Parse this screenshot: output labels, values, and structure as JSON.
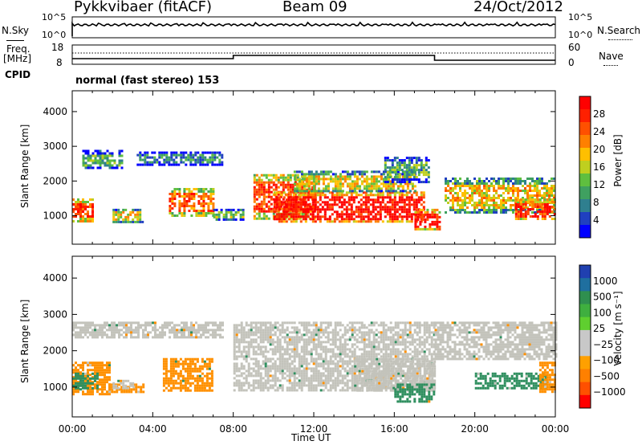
{
  "header": {
    "station": "Pykkvibaer (fitACF)",
    "beam": "Beam 09",
    "date": "24/Oct/2012"
  },
  "noise_panel": {
    "left_label": "N.Sky",
    "right_label": "N.Search",
    "ticks_left": [
      "10^5",
      "10^0"
    ],
    "ticks_right": [
      "10^5",
      "10^0"
    ]
  },
  "freq_panel": {
    "left_label_line1": "Freq.",
    "left_label_line2": "[MHz]",
    "right_label": "Nave",
    "ticks_left": [
      "18",
      "8"
    ],
    "ticks_right": [
      "60",
      "0"
    ],
    "cpid_label": "CPID",
    "cpid_value": "normal (fast stereo) 153"
  },
  "chart_data": [
    {
      "type": "heatmap",
      "name": "power",
      "ylabel": "Slant Range [km]",
      "ylim": [
        180,
        4600
      ],
      "yticks": [
        1000,
        2000,
        3000,
        4000
      ],
      "xlim": [
        0,
        24
      ],
      "colorbar": {
        "label": "Power [dB]",
        "ticks": [
          4,
          8,
          12,
          16,
          20,
          24,
          28
        ],
        "colors": [
          "#0000ff",
          "#2040c0",
          "#2f7f8f",
          "#3fa060",
          "#5fbf3f",
          "#bfcf1f",
          "#ffbf00",
          "#ff8000",
          "#ff5000",
          "#ff2000",
          "#ff0000"
        ]
      },
      "bands": [
        {
          "t0": 0.0,
          "t1": 1.0,
          "r0": 850,
          "r1": 1500,
          "level": 0.85
        },
        {
          "t0": 0.5,
          "t1": 2.5,
          "r0": 2400,
          "r1": 2900,
          "level": 0.35
        },
        {
          "t0": 2.0,
          "t1": 3.5,
          "r0": 800,
          "r1": 1200,
          "level": 0.55
        },
        {
          "t0": 3.2,
          "t1": 7.5,
          "r0": 2500,
          "r1": 2850,
          "level": 0.25
        },
        {
          "t0": 4.8,
          "t1": 7.0,
          "r0": 1000,
          "r1": 1800,
          "level": 0.75
        },
        {
          "t0": 7.0,
          "t1": 8.5,
          "r0": 900,
          "r1": 1200,
          "level": 0.45
        },
        {
          "t0": 9.0,
          "t1": 12.0,
          "r0": 900,
          "r1": 2200,
          "level": 0.8
        },
        {
          "t0": 10.0,
          "t1": 17.5,
          "r0": 800,
          "r1": 1700,
          "level": 0.95
        },
        {
          "t0": 11.0,
          "t1": 17.0,
          "r0": 1700,
          "r1": 2300,
          "level": 0.55
        },
        {
          "t0": 15.5,
          "t1": 17.7,
          "r0": 2000,
          "r1": 2700,
          "level": 0.35
        },
        {
          "t0": 17.0,
          "t1": 18.3,
          "r0": 600,
          "r1": 1200,
          "level": 0.9
        },
        {
          "t0": 18.5,
          "t1": 24.0,
          "r0": 1100,
          "r1": 2100,
          "level": 0.6
        },
        {
          "t0": 22.0,
          "t1": 24.0,
          "r0": 900,
          "r1": 1500,
          "level": 0.85
        }
      ]
    },
    {
      "type": "heatmap",
      "name": "velocity",
      "ylabel": "Slant Range [km]",
      "ylim": [
        180,
        4600
      ],
      "yticks": [
        1000,
        2000,
        3000,
        4000
      ],
      "xlim": [
        0,
        24
      ],
      "xticks": [
        "00:00",
        "04:00",
        "08:00",
        "12:00",
        "16:00",
        "20:00",
        "00:00"
      ],
      "xlabel": "Time UT",
      "colorbar": {
        "label": "Velocity [m s⁻¹]",
        "ticks": [
          "1000",
          "500",
          "100",
          "25",
          "−25",
          "−100",
          "−500",
          "−1000"
        ],
        "colors": [
          "#2040b0",
          "#1f6f9f",
          "#2f8f4f",
          "#3faf3f",
          "#5fcf2f",
          "#c8c8c8",
          "#c8c8c8",
          "#ffa000",
          "#ff8000",
          "#ff5000",
          "#ff0000"
        ]
      },
      "bands": [
        {
          "t0": 0.0,
          "t1": 7.5,
          "r0": 2400,
          "r1": 2800,
          "level": "gray"
        },
        {
          "t0": 0.0,
          "t1": 1.8,
          "r0": 800,
          "r1": 1700,
          "level": "orange"
        },
        {
          "t0": 0.0,
          "t1": 1.2,
          "r0": 1000,
          "r1": 1400,
          "level": "bluegreen"
        },
        {
          "t0": 1.8,
          "t1": 3.5,
          "r0": 900,
          "r1": 1100,
          "level": "orange"
        },
        {
          "t0": 2.0,
          "t1": 3.0,
          "r0": 1000,
          "r1": 1200,
          "level": "gray"
        },
        {
          "t0": 4.5,
          "t1": 7.0,
          "r0": 900,
          "r1": 1800,
          "level": "orange"
        },
        {
          "t0": 8.0,
          "t1": 18.0,
          "r0": 900,
          "r1": 2800,
          "level": "gray"
        },
        {
          "t0": 14.0,
          "t1": 18.0,
          "r0": 900,
          "r1": 1800,
          "level": "gray"
        },
        {
          "t0": 16.0,
          "t1": 18.0,
          "r0": 600,
          "r1": 1100,
          "level": "bluegreen"
        },
        {
          "t0": 18.0,
          "t1": 24.0,
          "r0": 1800,
          "r1": 2800,
          "level": "gray"
        },
        {
          "t0": 20.0,
          "t1": 23.5,
          "r0": 1000,
          "r1": 1400,
          "level": "bluegreen"
        },
        {
          "t0": 23.2,
          "t1": 24.0,
          "r0": 900,
          "r1": 1700,
          "level": "orange"
        }
      ]
    }
  ]
}
